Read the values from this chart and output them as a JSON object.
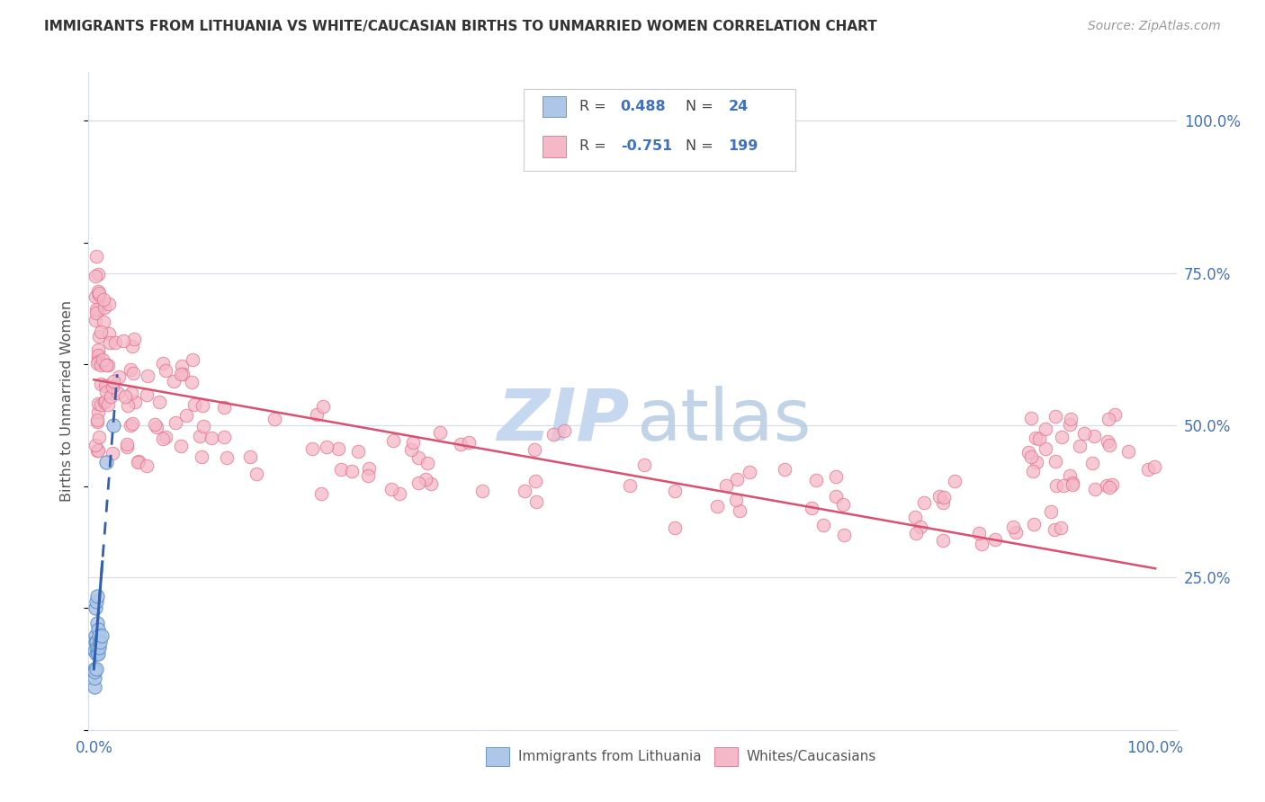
{
  "title": "IMMIGRANTS FROM LITHUANIA VS WHITE/CAUCASIAN BIRTHS TO UNMARRIED WOMEN CORRELATION CHART",
  "source": "Source: ZipAtlas.com",
  "ylabel": "Births to Unmarried Women",
  "r_blue": 0.488,
  "n_blue": 24,
  "r_pink": -0.751,
  "n_pink": 199,
  "blue_color": "#aec6e8",
  "blue_edge_color": "#5b8ec4",
  "blue_line_color": "#3060b0",
  "pink_color": "#f4b8c8",
  "pink_edge_color": "#e0708a",
  "pink_line_color": "#d95070",
  "watermark_zip_color": "#c5d8ef",
  "watermark_atlas_color": "#b8cce4",
  "grid_color": "#d8dde8",
  "tick_color": "#4070c0",
  "title_color": "#333333",
  "source_color": "#999999",
  "ylabel_color": "#555555",
  "legend_border_color": "#cccccc"
}
